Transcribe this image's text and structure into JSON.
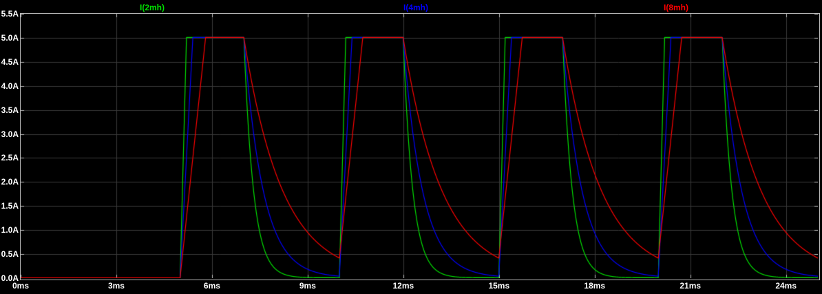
{
  "window": {
    "background": "#000000"
  },
  "colors": {
    "grid": "#3a3a3a",
    "border": "#b8b8b8",
    "tick": "#c0c0c0",
    "label_text": "#ffffff"
  },
  "chart_data": {
    "type": "line",
    "title": "",
    "legend_position": "top",
    "grid": true,
    "x_axis": {
      "unit": "ms",
      "range": [
        0,
        25
      ],
      "ticks": [
        {
          "label": "0ms",
          "value": 0
        },
        {
          "label": "3ms",
          "value": 3
        },
        {
          "label": "6ms",
          "value": 6
        },
        {
          "label": "9ms",
          "value": 9
        },
        {
          "label": "12ms",
          "value": 12
        },
        {
          "label": "15ms",
          "value": 15
        },
        {
          "label": "18ms",
          "value": 18
        },
        {
          "label": "21ms",
          "value": 21
        },
        {
          "label": "24ms",
          "value": 24
        }
      ]
    },
    "y_axis": {
      "unit": "A",
      "range": [
        0,
        5.5
      ],
      "ticks": [
        {
          "label": "0.0A",
          "value": 0.0
        },
        {
          "label": "0.5A",
          "value": 0.5
        },
        {
          "label": "1.0A",
          "value": 1.0
        },
        {
          "label": "1.5A",
          "value": 1.5
        },
        {
          "label": "2.0A",
          "value": 2.0
        },
        {
          "label": "2.5A",
          "value": 2.5
        },
        {
          "label": "3.0A",
          "value": 3.0
        },
        {
          "label": "3.5A",
          "value": 3.5
        },
        {
          "label": "4.0A",
          "value": 4.0
        },
        {
          "label": "4.5A",
          "value": 4.5
        },
        {
          "label": "5.0A",
          "value": 5.0
        },
        {
          "label": "5.5A",
          "value": 5.5
        }
      ]
    },
    "pulse": {
      "description": "Each trace is 0A until 5ms, then a pulse train: linear rise to peak, hold until pulse end, exponential decay between pulses.",
      "on_starts_ms": [
        5,
        10,
        15,
        20
      ],
      "width_ms": 2,
      "peak_A": 5.0,
      "initial_A": 0
    },
    "series": [
      {
        "name": "I(2mh)",
        "color": "#00e000",
        "rise_time_ms": 0.2,
        "decay_tau_ms": 0.3,
        "shape": "fastest rise (~5.0-5.2ms to 5A), fastest exponential decay (near 0A ~1.5ms after pulse end)"
      },
      {
        "name": "I(4mh)",
        "color": "#0000ff",
        "rise_time_ms": 0.4,
        "decay_tau_ms": 0.6,
        "shape": "medium rise (~5.0-5.4ms to 5A), medium exponential decay"
      },
      {
        "name": "I(8mh)",
        "color": "#ff0000",
        "rise_time_ms": 0.8,
        "decay_tau_ms": 1.2,
        "shape": "slowest rise (~5.0-5.8ms to 5A), slowest decay; still ~0.4A when next pulse starts and ~0.4A at right edge (25ms)"
      }
    ]
  }
}
